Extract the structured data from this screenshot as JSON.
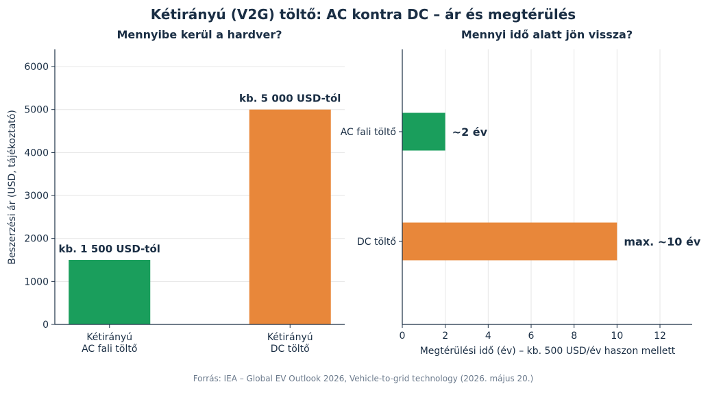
{
  "title": "Kétirányú (V2G) töltő: AC kontra DC – ár és megtérülés",
  "source": "Forrás: IEA – Global EV Outlook 2026, Vehicle-to-grid technology (2026. május 20.)",
  "colors": {
    "text": "#1a2e44",
    "grid": "#e6e6e6",
    "ac": "#1a9e5c",
    "dc": "#e8873a",
    "source": "#6b7a8c"
  },
  "chart_data": [
    {
      "type": "bar",
      "title": "Mennyibe kerül a hardver?",
      "ylabel": "Beszerzési ár (USD, tájékoztató)",
      "xlabel": "",
      "categories": [
        {
          "lines": [
            "Kétirányú",
            "AC fali töltő"
          ]
        },
        {
          "lines": [
            "Kétirányú",
            "DC töltő"
          ]
        }
      ],
      "values": [
        1500,
        5000
      ],
      "data_labels": [
        "kb. 1 500 USD-tól",
        "kb. 5 000 USD-tól"
      ],
      "ylim": [
        0,
        6400
      ],
      "yticks": [
        0,
        1000,
        2000,
        3000,
        4000,
        5000,
        6000
      ],
      "grid": true
    },
    {
      "type": "bar",
      "orientation": "horizontal",
      "title": "Mennyi idő alatt jön vissza?",
      "xlabel": "Megtérülési idő (év) – kb. 500 USD/év haszon mellett",
      "ylabel": "",
      "categories": [
        "AC fali töltő",
        "DC töltő"
      ],
      "values": [
        2,
        10
      ],
      "data_labels": [
        "~2 év",
        "max. ~10 év"
      ],
      "xlim": [
        0,
        13.5
      ],
      "xticks": [
        0,
        2,
        4,
        6,
        8,
        10,
        12
      ],
      "grid": true
    }
  ]
}
